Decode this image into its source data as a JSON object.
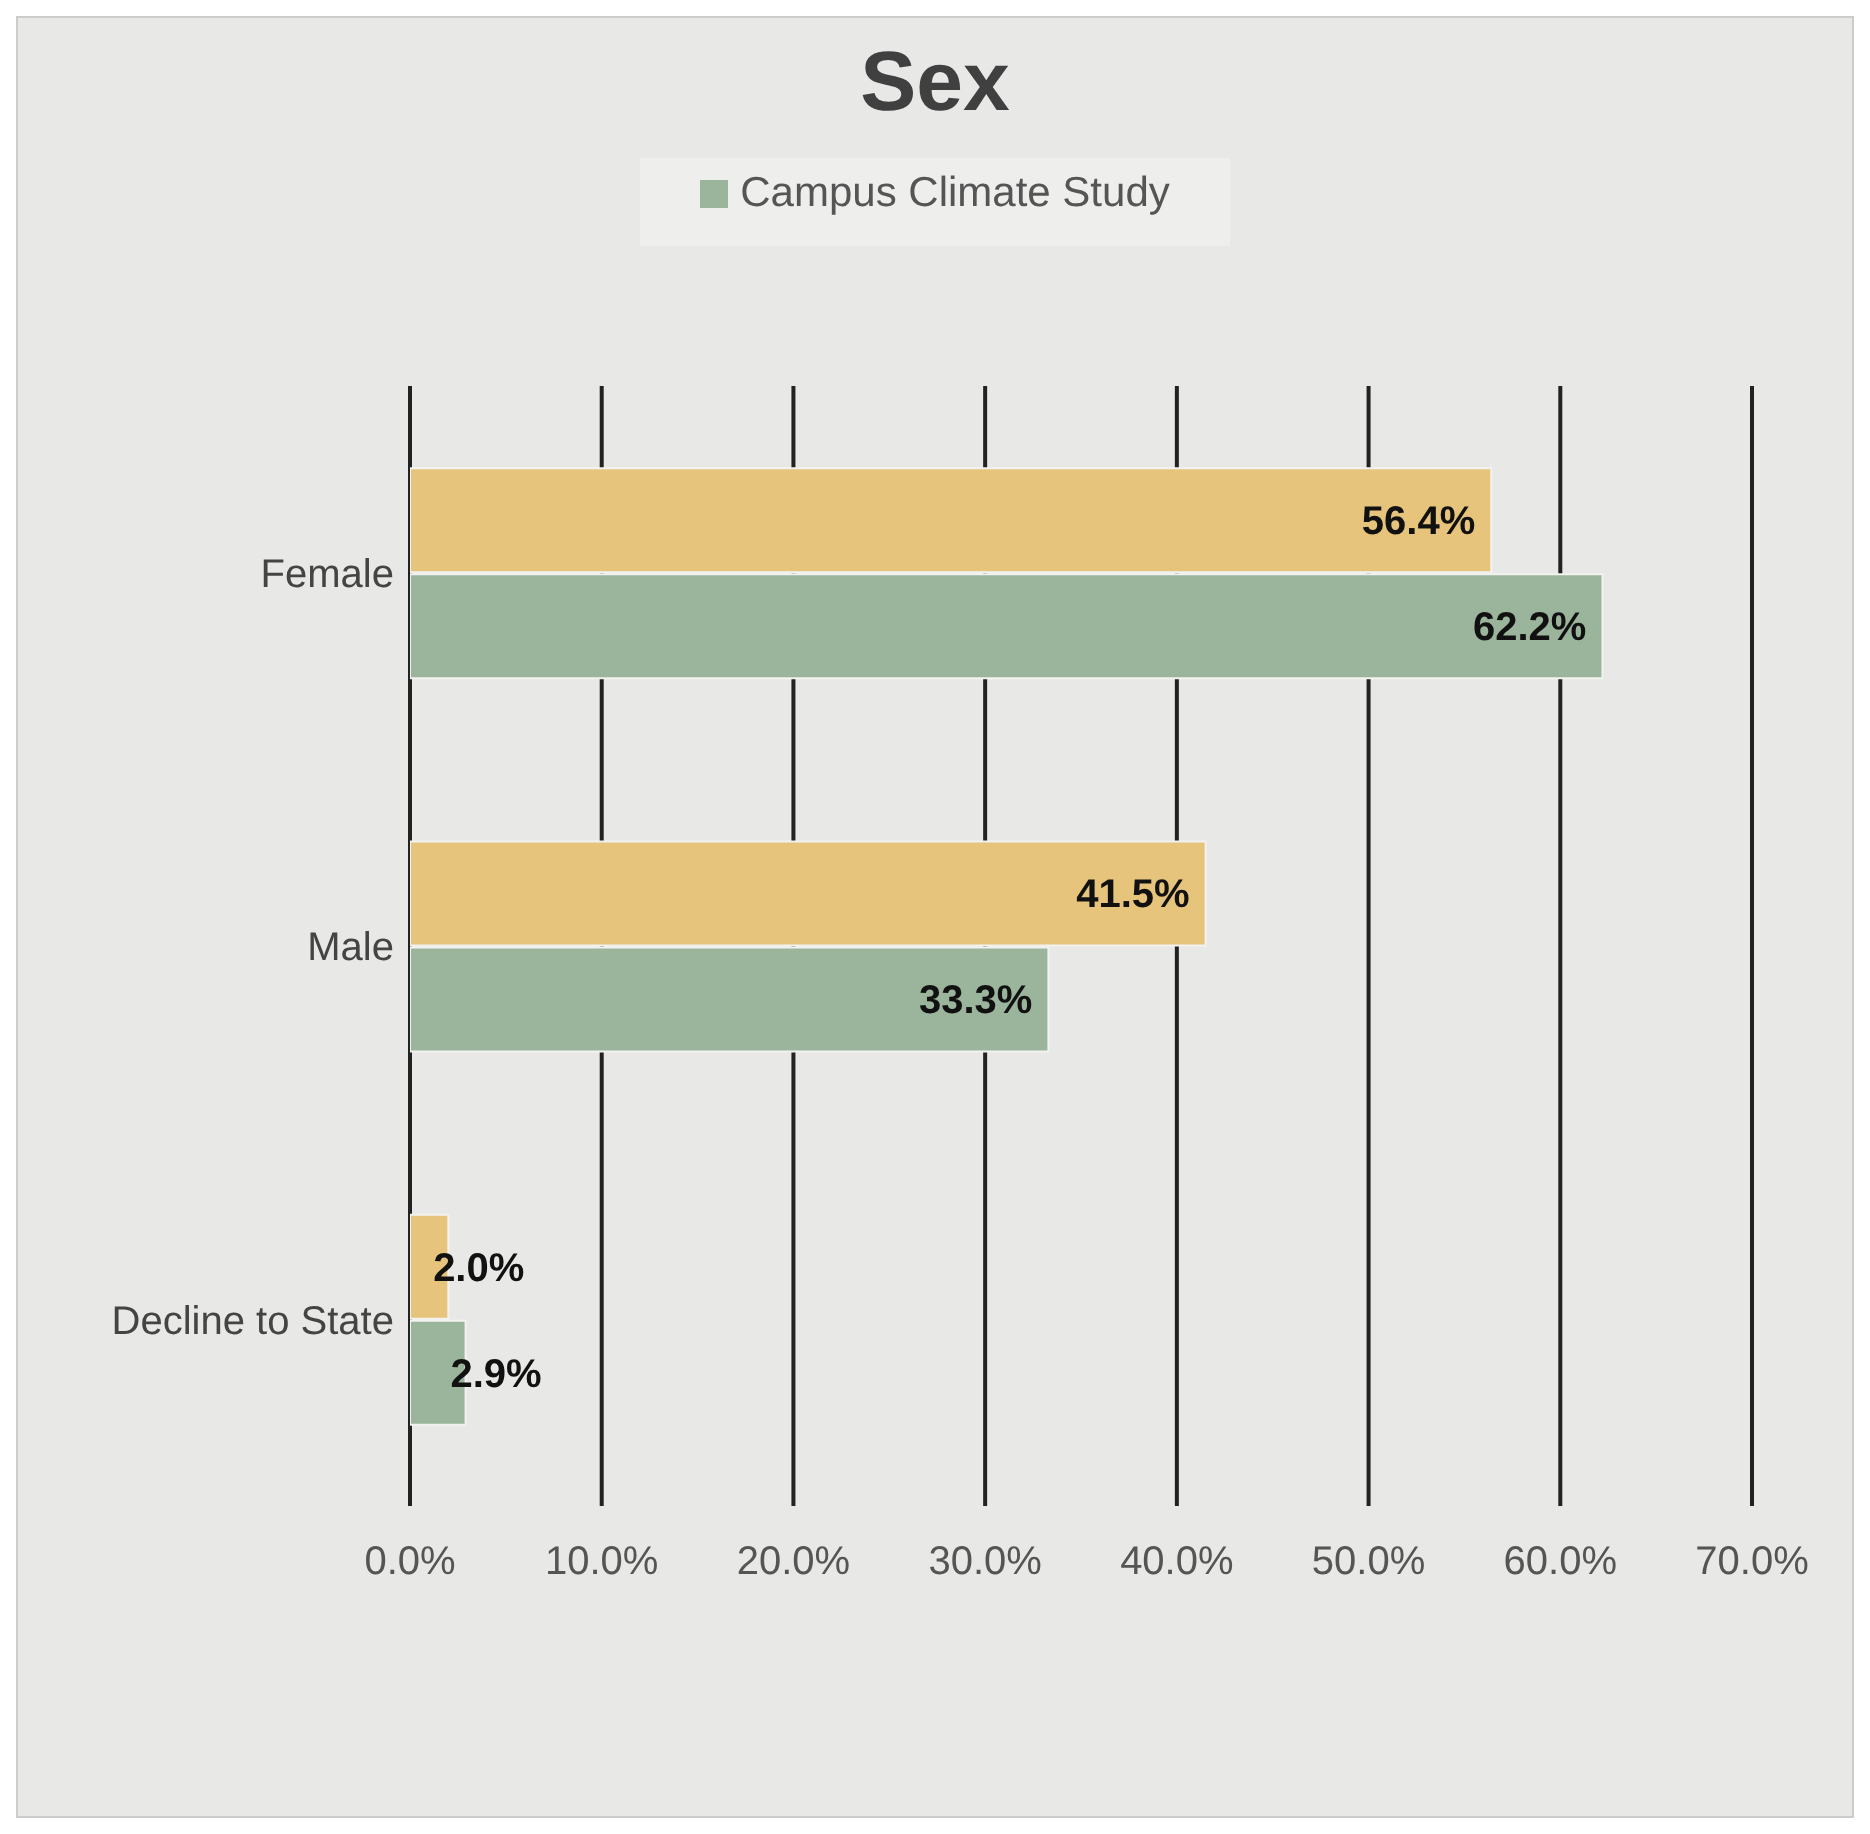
{
  "chart_data": {
    "type": "bar",
    "orientation": "horizontal",
    "title": "Sex",
    "categories": [
      "Female",
      "Male",
      "Decline to State"
    ],
    "series": [
      {
        "name": "Campus Climate Study",
        "color": "#9bb59c",
        "values": [
          62.2,
          33.3,
          2.9
        ]
      },
      {
        "color": "#e6c47c",
        "values": [
          56.4,
          41.5,
          2.0
        ]
      }
    ],
    "value_labels": [
      [
        "62.2%",
        "33.3%",
        "2.9%"
      ],
      [
        "56.4%",
        "41.5%",
        "2.0%"
      ]
    ],
    "xlim": [
      0,
      70
    ],
    "xticks": [
      {
        "value": 0,
        "label": "0.0%"
      },
      {
        "value": 10,
        "label": "10.0%"
      },
      {
        "value": 20,
        "label": "20.0%"
      },
      {
        "value": 30,
        "label": "30.0%"
      },
      {
        "value": 40,
        "label": "40.0%"
      },
      {
        "value": 50,
        "label": "50.0%"
      },
      {
        "value": 60,
        "label": "60.0%"
      },
      {
        "value": 70,
        "label": "70.0%"
      }
    ],
    "grid": "x",
    "legend": "top"
  }
}
